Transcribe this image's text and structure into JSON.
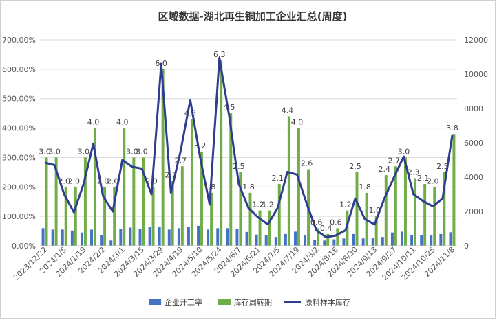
{
  "chart_data": {
    "title": "区域数据-湖北再生铜加工企业汇总(周度)",
    "type": "bar",
    "y_left_ticks": [
      "0.00%",
      "100.00%",
      "200.00%",
      "300.00%",
      "400.00%",
      "500.00%",
      "600.00%",
      "700.00%"
    ],
    "y_left_range": [
      0,
      700
    ],
    "y_right_ticks": [
      "0",
      "2000",
      "4000",
      "6000",
      "8000",
      "10000",
      "12000"
    ],
    "y_right_range": [
      0,
      12000
    ],
    "x_tick_labels": [
      "2023/12/22",
      "2024/1/5",
      "2024/1/19",
      "2024/2/2",
      "2024/3/1",
      "2024/3/15",
      "2024/3/29",
      "2024/4/19",
      "2024/5/10",
      "2024/5/24",
      "2024/6/7",
      "2024/6/21",
      "2024/7/5",
      "2024/7/19",
      "2024/8/2",
      "2024/8/16",
      "2024/8/30",
      "2024/9/13",
      "2024/9/27",
      "2024/10/11",
      "2024/10/25",
      "2024/11/8"
    ],
    "grid": true,
    "legend_position": "bottom",
    "series": [
      {
        "name": "企业开工率",
        "color": "#4472C4",
        "axis": "left",
        "kind": "bar",
        "values": [
          60,
          55,
          55,
          52,
          45,
          55,
          35,
          18,
          57,
          62,
          58,
          63,
          65,
          55,
          60,
          65,
          68,
          55,
          60,
          60,
          57,
          47,
          38,
          35,
          30,
          40,
          48,
          37,
          20,
          18,
          22,
          25,
          40,
          25,
          26,
          30,
          45,
          48,
          37,
          37,
          36,
          40,
          46
        ]
      },
      {
        "name": "库存周转期",
        "color": "#70AD47",
        "axis": "left",
        "kind": "bar",
        "values": [
          300,
          300,
          200,
          200,
          300,
          400,
          200,
          200,
          400,
          300,
          300,
          200,
          600,
          220,
          270,
          430,
          320,
          180,
          630,
          450,
          250,
          180,
          120,
          120,
          210,
          440,
          400,
          260,
          60,
          40,
          60,
          120,
          250,
          180,
          100,
          240,
          270,
          300,
          230,
          210,
          200,
          250,
          380
        ]
      },
      {
        "name": "原料样本库存",
        "color": "#2E3D8F",
        "axis": "right",
        "kind": "line",
        "values": [
          4850,
          4700,
          3000,
          1950,
          3600,
          5950,
          2900,
          2000,
          5000,
          4600,
          4500,
          3000,
          10600,
          3100,
          5500,
          8500,
          5200,
          2400,
          10950,
          7600,
          3600,
          2200,
          1650,
          1250,
          2200,
          4300,
          4150,
          2450,
          900,
          500,
          600,
          900,
          2750,
          1550,
          1250,
          2750,
          4000,
          5200,
          3000,
          2600,
          2300,
          2750,
          6450
        ]
      }
    ],
    "data_labels": [
      "3.0",
      "3.0",
      "2.0",
      "2.0",
      "3.0",
      "4.0",
      "2.0",
      "2.0",
      "4.0",
      "3.0",
      "3.0",
      "2.0",
      "6.0",
      "2.2",
      "2.7",
      "4.3",
      "3.2",
      "1.8",
      "6.3",
      "4.5",
      "2.5",
      "1.8",
      "1.2",
      "1.2",
      "2.1",
      "4.4",
      "4.0",
      "2.6",
      "0.6",
      "0.4",
      "0.6",
      "1.2",
      "2.5",
      "1.8",
      "1.0",
      "2.4",
      "2.7",
      "3.0",
      "2.3",
      "2.1",
      "2.0",
      "2.5",
      "3.8"
    ]
  }
}
